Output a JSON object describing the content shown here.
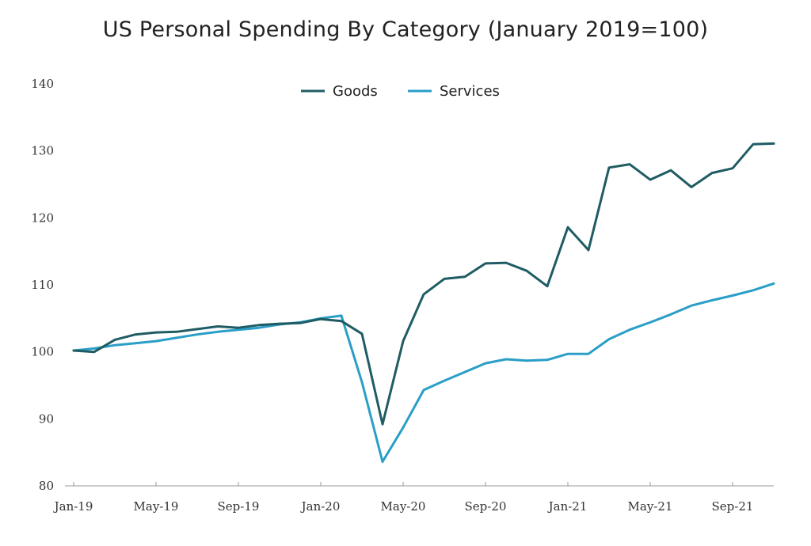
{
  "chart_data": {
    "type": "line",
    "title": "US Personal Spending By Category (January 2019=100)",
    "xlabel": "",
    "ylabel": "",
    "ylim": [
      80,
      140
    ],
    "yticks": [
      "80",
      "90",
      "100",
      "110",
      "120",
      "130",
      "140"
    ],
    "xtick_labels": [
      "Jan-19",
      "May-19",
      "Sep-19",
      "Jan-20",
      "May-20",
      "Sep-20",
      "Jan-21",
      "May-21",
      "Sep-21"
    ],
    "x": [
      "Jan-19",
      "Feb-19",
      "Mar-19",
      "Apr-19",
      "May-19",
      "Jun-19",
      "Jul-19",
      "Aug-19",
      "Sep-19",
      "Oct-19",
      "Nov-19",
      "Dec-19",
      "Jan-20",
      "Feb-20",
      "Mar-20",
      "Apr-20",
      "May-20",
      "Jun-20",
      "Jul-20",
      "Aug-20",
      "Sep-20",
      "Oct-20",
      "Nov-20",
      "Dec-20",
      "Jan-21",
      "Feb-21",
      "Mar-21",
      "Apr-21",
      "May-21",
      "Jun-21",
      "Jul-21",
      "Aug-21",
      "Sep-21",
      "Oct-21",
      "Nov-21"
    ],
    "legend_position": "top-center",
    "grid": false,
    "series": [
      {
        "name": "Goods",
        "color": "#1f5c63",
        "values": [
          100.2,
          100.0,
          101.8,
          102.6,
          102.9,
          103.0,
          103.4,
          103.8,
          103.6,
          104.0,
          104.2,
          104.3,
          104.9,
          104.6,
          102.7,
          89.2,
          101.6,
          108.6,
          110.9,
          111.2,
          113.2,
          113.3,
          112.1,
          109.8,
          118.6,
          115.2,
          127.5,
          128.0,
          125.7,
          127.1,
          124.6,
          126.7,
          127.4,
          131.0,
          131.1
        ]
      },
      {
        "name": "Services",
        "color": "#2a9ec7",
        "values": [
          100.2,
          100.5,
          101.0,
          101.3,
          101.6,
          102.1,
          102.6,
          103.0,
          103.3,
          103.6,
          104.1,
          104.4,
          105.0,
          105.4,
          95.5,
          83.6,
          88.7,
          94.3,
          95.7,
          97.0,
          98.3,
          98.9,
          98.7,
          98.8,
          99.7,
          99.7,
          101.9,
          103.3,
          104.4,
          105.6,
          106.9,
          107.7,
          108.4,
          109.2,
          110.2
        ]
      }
    ]
  }
}
